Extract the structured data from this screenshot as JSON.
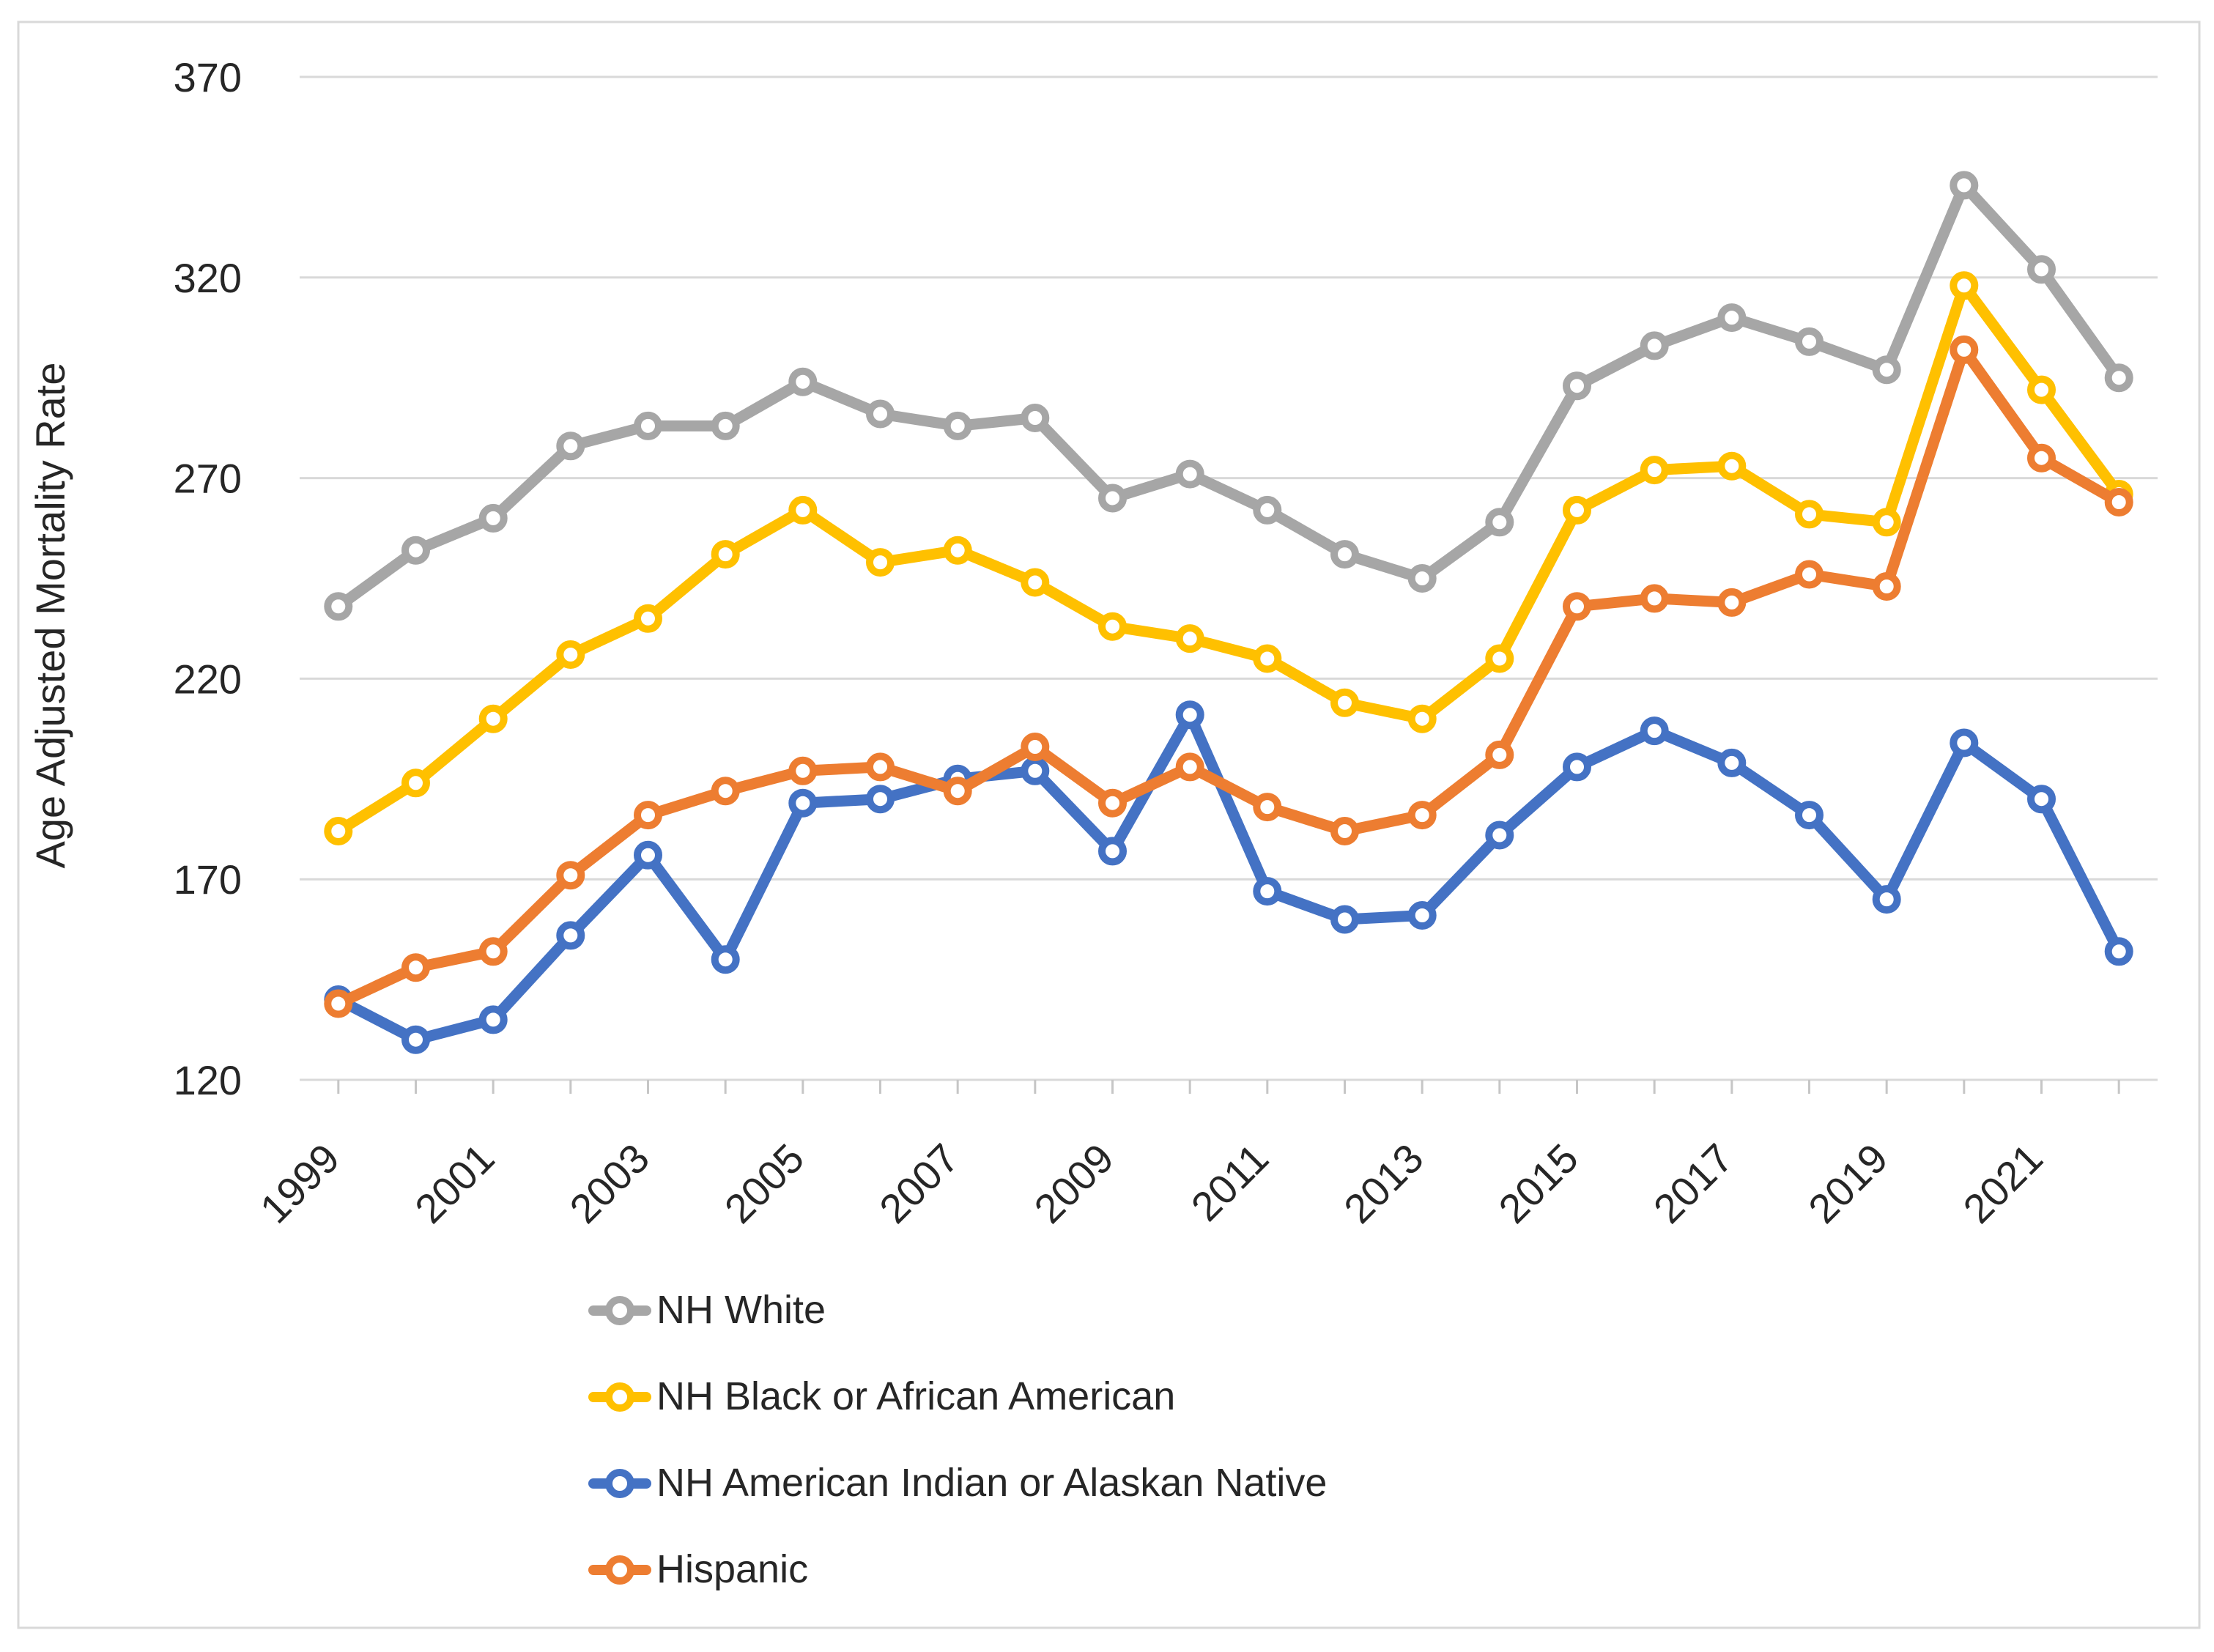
{
  "chart_data": {
    "type": "line",
    "title": "",
    "ylabel": "Age Adjusted Mortality Rate",
    "xlabel": "",
    "ylim": [
      120,
      370
    ],
    "yticks": [
      120,
      170,
      220,
      270,
      320,
      370
    ],
    "grid": true,
    "legend_position": "bottom-left",
    "years": [
      1999,
      2000,
      2001,
      2002,
      2003,
      2004,
      2005,
      2006,
      2007,
      2008,
      2009,
      2010,
      2011,
      2012,
      2013,
      2014,
      2015,
      2016,
      2017,
      2018,
      2019,
      2020,
      2021,
      2022
    ],
    "x_axis_labels": [
      "1999",
      "2001",
      "2003",
      "2005",
      "2007",
      "2009",
      "2011",
      "2013",
      "2015",
      "2017",
      "2019",
      "2021"
    ],
    "series": [
      {
        "name": "NH White",
        "color": "#A6A6A6",
        "values": [
          238,
          252,
          260,
          278,
          283,
          283,
          294,
          286,
          283,
          285,
          265,
          271,
          262,
          251,
          245,
          259,
          293,
          303,
          310,
          304,
          297,
          343,
          322,
          295
        ]
      },
      {
        "name": "NH Black or African American",
        "color": "#FFC000",
        "values": [
          182,
          194,
          210,
          226,
          235,
          251,
          262,
          249,
          252,
          244,
          233,
          230,
          225,
          214,
          210,
          225,
          262,
          272,
          273,
          261,
          259,
          318,
          292,
          266
        ]
      },
      {
        "name": "NH American Indian or Alaskan Native",
        "color": "#4472C4",
        "values": [
          140,
          130,
          135,
          156,
          176,
          150,
          189,
          190,
          195,
          197,
          177,
          211,
          167,
          160,
          161,
          181,
          198,
          207,
          199,
          186,
          165,
          204,
          190,
          152
        ]
      },
      {
        "name": "Hispanic",
        "color": "#ED7D31",
        "values": [
          139,
          148,
          152,
          171,
          186,
          192,
          197,
          198,
          192,
          203,
          189,
          198,
          188,
          182,
          186,
          201,
          238,
          240,
          239,
          246,
          243,
          302,
          275,
          264
        ]
      }
    ]
  },
  "style": {
    "background": "#FFFFFF",
    "border_color": "#D9D9D9",
    "grid_color": "#D9D9D9",
    "tick_color": "#C6C6C6",
    "text_color": "#262626"
  }
}
